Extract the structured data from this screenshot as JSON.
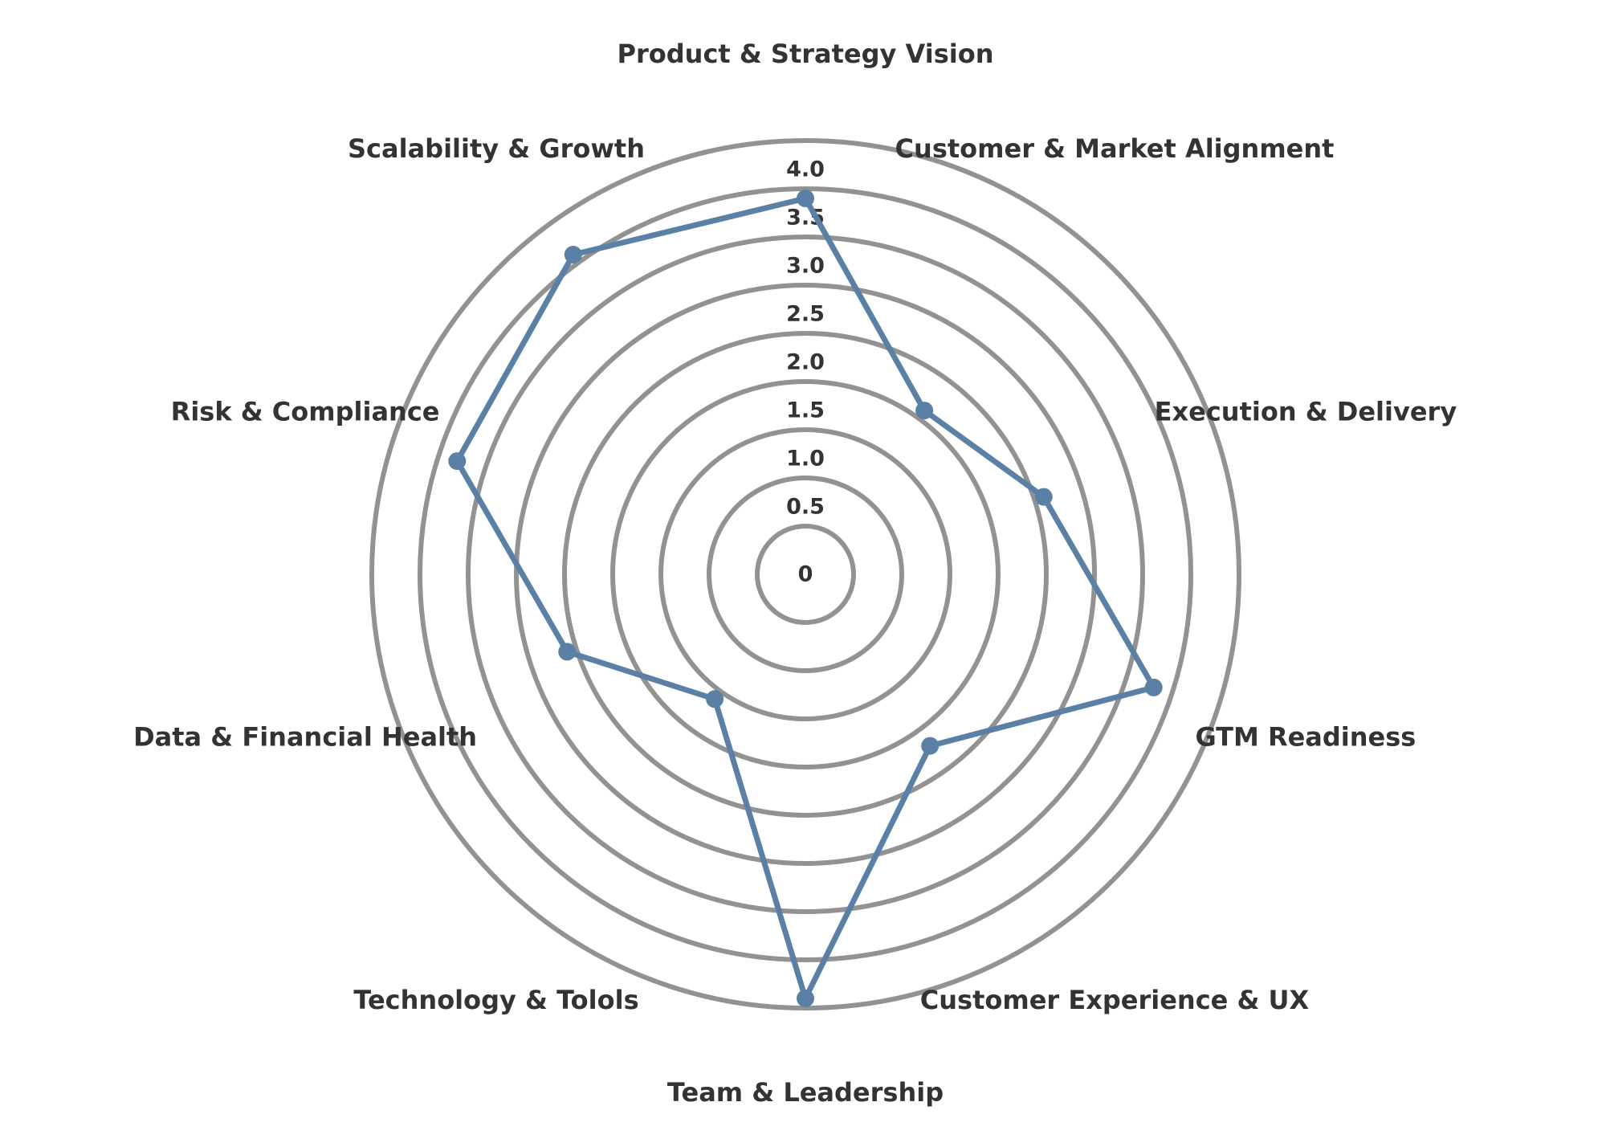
{
  "chart_data": {
    "type": "radar",
    "title": "",
    "axes": [
      "Product & Strategy Vision",
      "Customer & Market Alignment",
      "Execution & Delivery",
      "GTM Readiness",
      "Customer Experience & UX",
      "Team & Leadership",
      "Technology & Tolols",
      "Data & Financial Health",
      "Risk & Compliance",
      "Scalability & Growth"
    ],
    "series": [
      {
        "values": [
          3.9,
          2.1,
          2.6,
          3.8,
          2.2,
          4.4,
          1.6,
          2.6,
          3.8,
          4.1
        ],
        "color": "#5b80a5"
      }
    ],
    "ticks": [
      "0",
      "0.5",
      "1.0",
      "1.5",
      "2.0",
      "2.5",
      "3.0",
      "3.5",
      "4.0"
    ],
    "rmax": 4.5,
    "ring_step": 0.5,
    "grid": true,
    "legend": "none",
    "ring_color": "#929292"
  }
}
